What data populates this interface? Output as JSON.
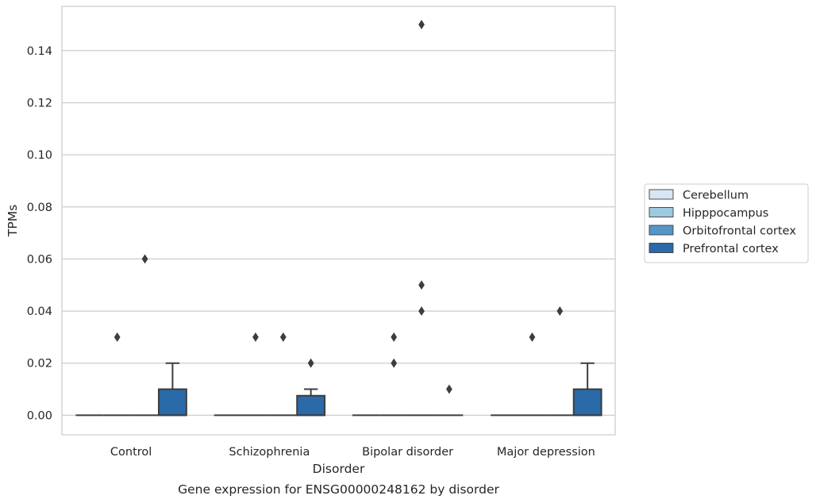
{
  "chart_data": {
    "type": "box",
    "title": "",
    "caption": "Gene expression for ENSG00000248162 by disorder",
    "xlabel": "Disorder",
    "ylabel": "TPMs",
    "ylim": [
      -0.0075,
      0.157
    ],
    "yticks": [
      0.0,
      0.02,
      0.04,
      0.06,
      0.08,
      0.1,
      0.12,
      0.14
    ],
    "ytick_labels": [
      "0.00",
      "0.02",
      "0.04",
      "0.06",
      "0.08",
      "0.10",
      "0.12",
      "0.14"
    ],
    "grid": true,
    "legend_position": "right",
    "categories": [
      "Control",
      "Schizophrenia",
      "Bipolar disorder",
      "Major depression"
    ],
    "series": [
      {
        "name": "Cerebellum",
        "color": "#d6e6f4",
        "boxes": [
          {
            "q1": 0,
            "median": 0,
            "q3": 0,
            "whisker_low": 0,
            "whisker_high": 0,
            "outliers": []
          },
          {
            "q1": 0,
            "median": 0,
            "q3": 0,
            "whisker_low": 0,
            "whisker_high": 0,
            "outliers": []
          },
          {
            "q1": 0,
            "median": 0,
            "q3": 0,
            "whisker_low": 0,
            "whisker_high": 0,
            "outliers": []
          },
          {
            "q1": 0,
            "median": 0,
            "q3": 0,
            "whisker_low": 0,
            "whisker_high": 0,
            "outliers": []
          }
        ]
      },
      {
        "name": "Hipppocampus",
        "color": "#9dc9e1",
        "boxes": [
          {
            "q1": 0,
            "median": 0,
            "q3": 0,
            "whisker_low": 0,
            "whisker_high": 0,
            "outliers": [
              0.03
            ]
          },
          {
            "q1": 0,
            "median": 0,
            "q3": 0,
            "whisker_low": 0,
            "whisker_high": 0,
            "outliers": [
              0.03
            ]
          },
          {
            "q1": 0,
            "median": 0,
            "q3": 0,
            "whisker_low": 0,
            "whisker_high": 0,
            "outliers": [
              0.03,
              0.02
            ]
          },
          {
            "q1": 0,
            "median": 0,
            "q3": 0,
            "whisker_low": 0,
            "whisker_high": 0,
            "outliers": [
              0.03
            ]
          }
        ]
      },
      {
        "name": "Orbitofrontal cortex",
        "color": "#5596c6",
        "boxes": [
          {
            "q1": 0,
            "median": 0,
            "q3": 0,
            "whisker_low": 0,
            "whisker_high": 0,
            "outliers": [
              0.06
            ]
          },
          {
            "q1": 0,
            "median": 0,
            "q3": 0,
            "whisker_low": 0,
            "whisker_high": 0,
            "outliers": [
              0.03
            ]
          },
          {
            "q1": 0,
            "median": 0,
            "q3": 0,
            "whisker_low": 0,
            "whisker_high": 0,
            "outliers": [
              0.15,
              0.05,
              0.04
            ]
          },
          {
            "q1": 0,
            "median": 0,
            "q3": 0,
            "whisker_low": 0,
            "whisker_high": 0,
            "outliers": [
              0.04
            ]
          }
        ]
      },
      {
        "name": "Prefrontal cortex",
        "color": "#2a6aa9",
        "boxes": [
          {
            "q1": 0,
            "median": 0,
            "q3": 0.01,
            "whisker_low": 0,
            "whisker_high": 0.02,
            "outliers": []
          },
          {
            "q1": 0,
            "median": 0,
            "q3": 0.0075,
            "whisker_low": 0,
            "whisker_high": 0.01,
            "outliers": [
              0.02
            ]
          },
          {
            "q1": 0,
            "median": 0,
            "q3": 0,
            "whisker_low": 0,
            "whisker_high": 0,
            "outliers": [
              0.01
            ]
          },
          {
            "q1": 0,
            "median": 0,
            "q3": 0.01,
            "whisker_low": 0,
            "whisker_high": 0.02,
            "outliers": []
          }
        ]
      }
    ]
  }
}
